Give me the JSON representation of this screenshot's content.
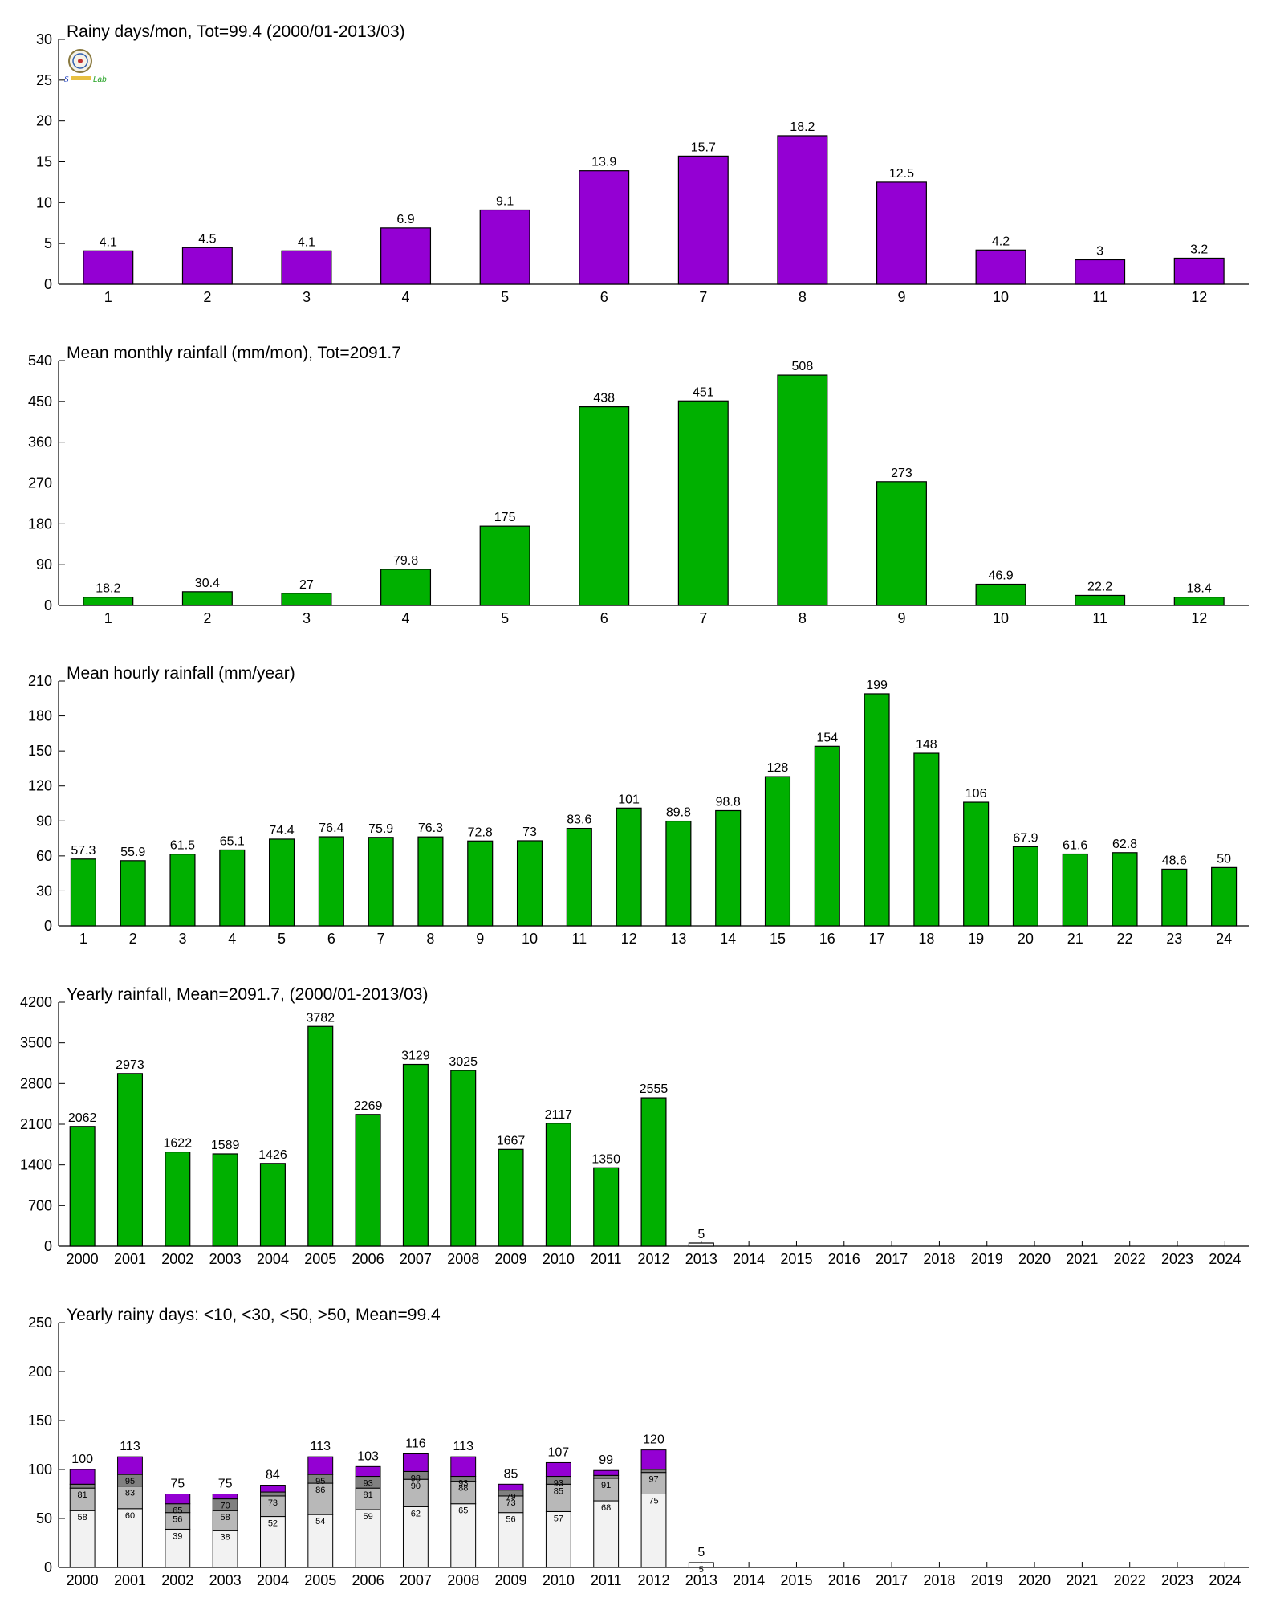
{
  "colors": {
    "purple": "#9400D3",
    "green": "#00B000",
    "gray_dark": "#808080",
    "gray_mid": "#B8B8B8",
    "gray_light": "#F2F2F2"
  },
  "logo": {
    "icon": "lab-seal-logo",
    "text": "Lab"
  },
  "chart_data": [
    {
      "type": "bar",
      "title": "Rainy days/mon, Tot=99.4 (2000/01-2013/03)",
      "xlabel": "",
      "ylabel": "",
      "color": "purple",
      "ylim": [
        0,
        30
      ],
      "yticks": [
        0,
        5,
        10,
        15,
        20,
        25,
        30
      ],
      "categories": [
        "1",
        "2",
        "3",
        "4",
        "5",
        "6",
        "7",
        "8",
        "9",
        "10",
        "11",
        "12"
      ],
      "values": [
        4.1,
        4.5,
        4.1,
        6.9,
        9.1,
        13.9,
        15.7,
        18.2,
        12.5,
        4.2,
        3,
        3.2
      ],
      "labels": [
        "4.1",
        "4.5",
        "4.1",
        "6.9",
        "9.1",
        "13.9",
        "15.7",
        "18.2",
        "12.5",
        "4.2",
        "3",
        "3.2"
      ]
    },
    {
      "type": "bar",
      "title": "Mean monthly rainfall (mm/mon), Tot=2091.7",
      "xlabel": "",
      "ylabel": "",
      "color": "green",
      "ylim": [
        0,
        540
      ],
      "yticks": [
        0,
        90,
        180,
        270,
        360,
        450,
        540
      ],
      "categories": [
        "1",
        "2",
        "3",
        "4",
        "5",
        "6",
        "7",
        "8",
        "9",
        "10",
        "11",
        "12"
      ],
      "values": [
        18.2,
        30.4,
        27,
        79.8,
        175,
        438,
        451,
        508,
        273,
        46.9,
        22.2,
        18.4
      ],
      "labels": [
        "18.2",
        "30.4",
        "27",
        "79.8",
        "175",
        "438",
        "451",
        "508",
        "273",
        "46.9",
        "22.2",
        "18.4"
      ]
    },
    {
      "type": "bar",
      "title": "Mean hourly rainfall (mm/year)",
      "xlabel": "",
      "ylabel": "",
      "color": "green",
      "ylim": [
        0,
        210
      ],
      "yticks": [
        0,
        30,
        60,
        90,
        120,
        150,
        180,
        210
      ],
      "categories": [
        "1",
        "2",
        "3",
        "4",
        "5",
        "6",
        "7",
        "8",
        "9",
        "10",
        "11",
        "12",
        "13",
        "14",
        "15",
        "16",
        "17",
        "18",
        "19",
        "20",
        "21",
        "22",
        "23",
        "24"
      ],
      "values": [
        57.3,
        55.9,
        61.5,
        65.1,
        74.4,
        76.4,
        75.9,
        76.3,
        72.8,
        73,
        83.6,
        101,
        89.8,
        98.8,
        128,
        154,
        199,
        148,
        106,
        67.9,
        61.6,
        62.8,
        48.6,
        50
      ],
      "labels": [
        "57.3",
        "55.9",
        "61.5",
        "65.1",
        "74.4",
        "76.4",
        "75.9",
        "76.3",
        "72.8",
        "73",
        "83.6",
        "101",
        "89.8",
        "98.8",
        "128",
        "154",
        "199",
        "148",
        "106",
        "67.9",
        "61.6",
        "62.8",
        "48.6",
        "50"
      ]
    },
    {
      "type": "bar",
      "title": "Yearly rainfall, Mean=2091.7, (2000/01-2013/03)",
      "xlabel": "",
      "ylabel": "",
      "color": "green",
      "ylim": [
        0,
        4200
      ],
      "yticks": [
        0,
        700,
        1400,
        2100,
        2800,
        3500,
        4200
      ],
      "categories": [
        "2000",
        "2001",
        "2002",
        "2003",
        "2004",
        "2005",
        "2006",
        "2007",
        "2008",
        "2009",
        "2010",
        "2011",
        "2012",
        "2013",
        "2014",
        "2015",
        "2016",
        "2017",
        "2018",
        "2019",
        "2020",
        "2021",
        "2022",
        "2023",
        "2024"
      ],
      "values": [
        2062,
        2973,
        1622,
        1589,
        1426,
        3782,
        2269,
        3129,
        3025,
        1667,
        2117,
        1350,
        2555,
        5,
        null,
        null,
        null,
        null,
        null,
        null,
        null,
        null,
        null,
        null,
        null
      ],
      "labels": [
        "2062",
        "2973",
        "1622",
        "1589",
        "1426",
        "3782",
        "2269",
        "3129",
        "3025",
        "1667",
        "2117",
        "1350",
        "2555",
        "5",
        "",
        "",
        "",
        "",
        "",
        "",
        "",
        "",
        "",
        "",
        ""
      ]
    },
    {
      "type": "bar",
      "stacked": true,
      "title": "Yearly rainy days: <10, <30, <50, >50, Mean=99.4",
      "xlabel": "",
      "ylabel": "",
      "ylim": [
        0,
        250
      ],
      "yticks": [
        0,
        50,
        100,
        150,
        200,
        250
      ],
      "categories": [
        "2000",
        "2001",
        "2002",
        "2003",
        "2004",
        "2005",
        "2006",
        "2007",
        "2008",
        "2009",
        "2010",
        "2011",
        "2012",
        "2013",
        "2014",
        "2015",
        "2016",
        "2017",
        "2018",
        "2019",
        "2020",
        "2021",
        "2022",
        "2023",
        "2024"
      ],
      "cumulative": [
        [
          58,
          81,
          85,
          100
        ],
        [
          60,
          83,
          95,
          113
        ],
        [
          39,
          56,
          65,
          75
        ],
        [
          38,
          58,
          70,
          75
        ],
        [
          52,
          73,
          77,
          84
        ],
        [
          54,
          86,
          95,
          113
        ],
        [
          59,
          81,
          93,
          103
        ],
        [
          62,
          90,
          98,
          116
        ],
        [
          65,
          88,
          93,
          113
        ],
        [
          56,
          73,
          79,
          85
        ],
        [
          57,
          85,
          93,
          107
        ],
        [
          68,
          91,
          94,
          99
        ],
        [
          75,
          97,
          100,
          120
        ],
        [
          5,
          5,
          5,
          5
        ],
        null,
        null,
        null,
        null,
        null,
        null,
        null,
        null,
        null,
        null,
        null
      ],
      "segment_labels": [
        [
          "58",
          "81",
          "",
          ""
        ],
        [
          "60",
          "83",
          "95",
          ""
        ],
        [
          "39",
          "56",
          "65",
          ""
        ],
        [
          "38",
          "58",
          "70",
          ""
        ],
        [
          "52",
          "73",
          "",
          ""
        ],
        [
          "54",
          "86",
          "95",
          ""
        ],
        [
          "59",
          "81",
          "93",
          ""
        ],
        [
          "62",
          "90",
          "98",
          ""
        ],
        [
          "65",
          "88",
          "93",
          ""
        ],
        [
          "56",
          "73",
          "79",
          ""
        ],
        [
          "57",
          "85",
          "93",
          ""
        ],
        [
          "68",
          "91",
          "",
          ""
        ],
        [
          "75",
          "97",
          "",
          ""
        ],
        [
          "5",
          "",
          "",
          ""
        ]
      ],
      "totals": [
        "100",
        "113",
        "75",
        "75",
        "84",
        "113",
        "103",
        "116",
        "113",
        "85",
        "107",
        "99",
        "120",
        "5",
        "",
        "",
        "",
        "",
        "",
        "",
        "",
        "",
        "",
        "",
        ""
      ],
      "segment_colors": [
        "gray_light",
        "gray_mid",
        "gray_dark",
        "purple"
      ]
    }
  ]
}
